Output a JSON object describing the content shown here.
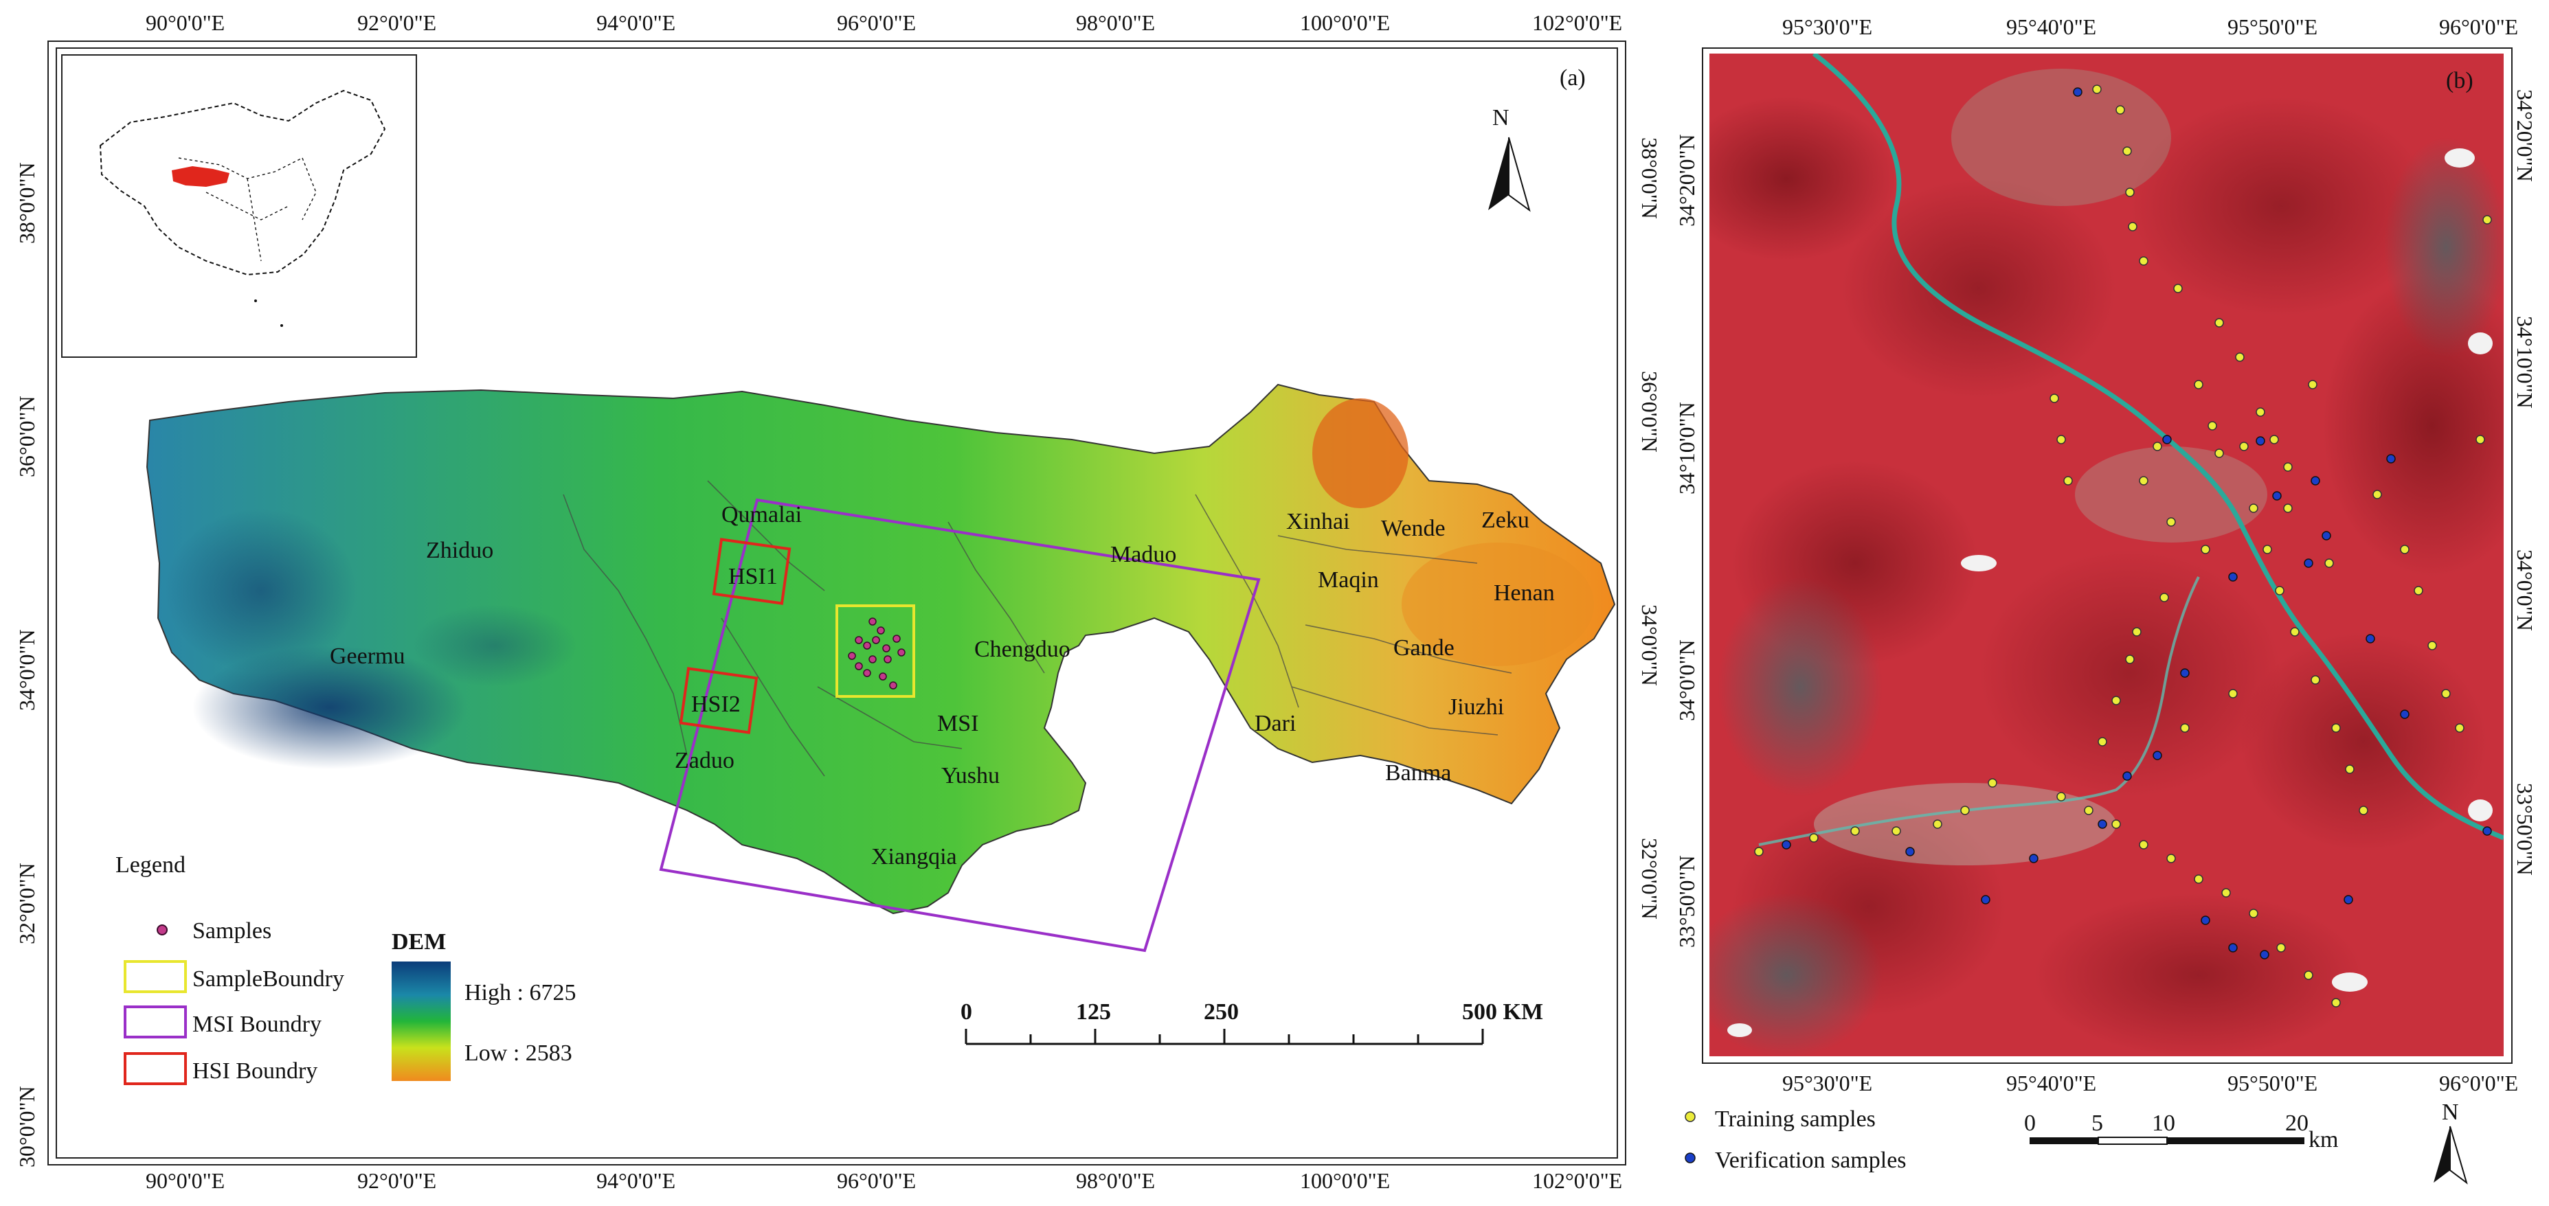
{
  "panel_a": {
    "tag": "(a)",
    "top_ticks": [
      "90°0'0\"E",
      "92°0'0\"E",
      "94°0'0\"E",
      "96°0'0\"E",
      "98°0'0\"E",
      "100°0'0\"E",
      "102°0'0\"E"
    ],
    "bottom_ticks": [
      "90°0'0\"E",
      "92°0'0\"E",
      "94°0'0\"E",
      "96°0'0\"E",
      "98°0'0\"E",
      "100°0'0\"E",
      "102°0'0\"E"
    ],
    "left_ticks": [
      "38°0'0\"N",
      "36°0'0\"N",
      "34°0'0\"N",
      "32°0'0\"N",
      "30°0'0\"N"
    ],
    "right_ticks": [
      "38°0'0\"N",
      "36°0'0\"N",
      "34°0'0\"N",
      "32°0'0\"N"
    ],
    "north": "N",
    "places": {
      "zhiduo": "Zhiduo",
      "qumalai": "Qumalai",
      "maduo": "Maduo",
      "xinhai": "Xinhai",
      "wende": "Wende",
      "zeku": "Zeku",
      "maqin": "Maqin",
      "henan": "Henan",
      "geermu": "Geermu",
      "chengduo": "Chengduo",
      "gande": "Gande",
      "jiuzhi": "Jiuzhi",
      "dari": "Dari",
      "banma": "Banma",
      "zaduo": "Zaduo",
      "yushu": "Yushu",
      "xiangqia": "Xiangqia",
      "hsi1": "HSI1",
      "hsi2": "HSI2",
      "msi": "MSI"
    },
    "legend": {
      "title": "Legend",
      "samples": "Samples",
      "sample_boundary": "SampleBoundry",
      "msi_boundary": "MSI Boundry",
      "hsi_boundary": "HSI Boundry"
    },
    "dem": {
      "title": "DEM",
      "high": "High : 6725",
      "low": "Low : 2583"
    },
    "scale": {
      "labels": [
        "0",
        "125",
        "250",
        "500 KM"
      ]
    }
  },
  "panel_b": {
    "tag": "(b)",
    "top_ticks": [
      "95°30'0\"E",
      "95°40'0\"E",
      "95°50'0\"E",
      "96°0'0\"E"
    ],
    "bottom_ticks": [
      "95°30'0\"E",
      "95°40'0\"E",
      "95°50'0\"E",
      "96°0'0\"E"
    ],
    "left_ticks": [
      "34°20'0\"N",
      "34°10'0\"N",
      "34°0'0\"N",
      "33°50'0\"N"
    ],
    "right_ticks": [
      "34°20'0\"N",
      "34°10'0\"N",
      "34°0'0\"N",
      "33°50'0\"N"
    ],
    "legend": {
      "training": "Training samples",
      "verification": "Verification samples"
    },
    "scale": {
      "labels": [
        "0",
        "5",
        "10",
        "20"
      ],
      "unit": "km"
    },
    "north": "N"
  },
  "colors": {
    "dem_high": "#0c3d7a",
    "dem_mid": "#22b53a",
    "dem_low": "#f08a1e",
    "msi": "#9a2fc8",
    "hsi": "#e0261c",
    "sample_box": "#e8e62e",
    "training": "#ecec3a",
    "verification": "#1a3fc8",
    "river": "#2aa99a"
  }
}
